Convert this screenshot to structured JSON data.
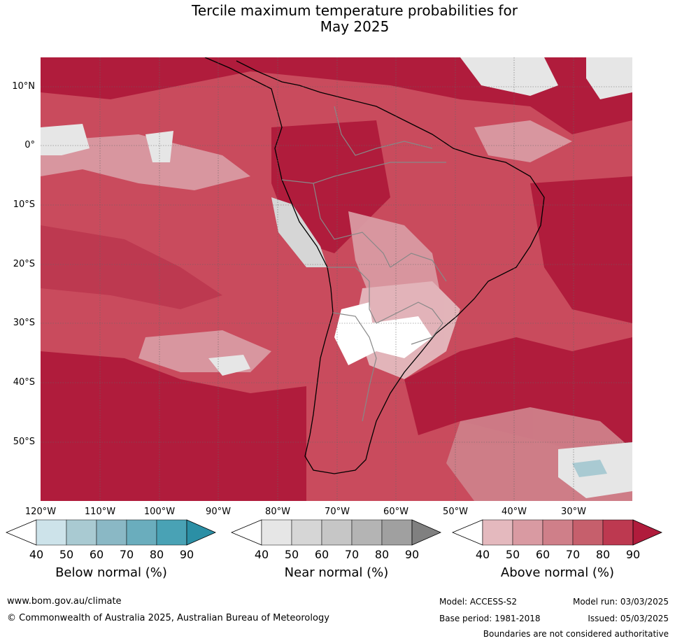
{
  "title": {
    "line1": "Tercile maximum temperature probabilities for",
    "line2": "May 2025"
  },
  "map": {
    "lat_labels": [
      "10°N",
      "0°",
      "10°S",
      "20°S",
      "30°S",
      "40°S",
      "50°S"
    ],
    "lon_labels": [
      "120°W",
      "110°W",
      "100°W",
      "90°W",
      "80°W",
      "70°W",
      "60°W",
      "50°W",
      "40°W",
      "30°W"
    ]
  },
  "colorbars": [
    {
      "label": "Below normal (%)",
      "ticks": [
        "40",
        "50",
        "60",
        "70",
        "80",
        "90"
      ],
      "colors": [
        "#cde3ea",
        "#a9cad2",
        "#8ab8c5",
        "#6aadbd",
        "#49a2b5",
        "#2b8fa5"
      ]
    },
    {
      "label": "Near normal (%)",
      "ticks": [
        "40",
        "50",
        "60",
        "70",
        "80",
        "90"
      ],
      "colors": [
        "#e6e6e6",
        "#d6d6d6",
        "#c6c6c6",
        "#b4b4b4",
        "#a0a0a0",
        "#808080"
      ]
    },
    {
      "label": "Above normal (%)",
      "ticks": [
        "40",
        "50",
        "60",
        "70",
        "80",
        "90"
      ],
      "colors": [
        "#e4b9be",
        "#d99aa2",
        "#cf7f89",
        "#c65f6c",
        "#bd3950",
        "#b01c3c"
      ]
    }
  ],
  "footer": {
    "website": "www.bom.gov.au/climate",
    "copyright": "© Commonwealth of Australia 2025, Australian Bureau of Meteorology",
    "model": "Model: ACCESS-S2",
    "base_period": "Base period: 1981-2018",
    "model_run": "Model run: 03/03/2025",
    "issued": "Issued: 05/03/2025",
    "boundaries": "Boundaries are not considered authoritative"
  }
}
